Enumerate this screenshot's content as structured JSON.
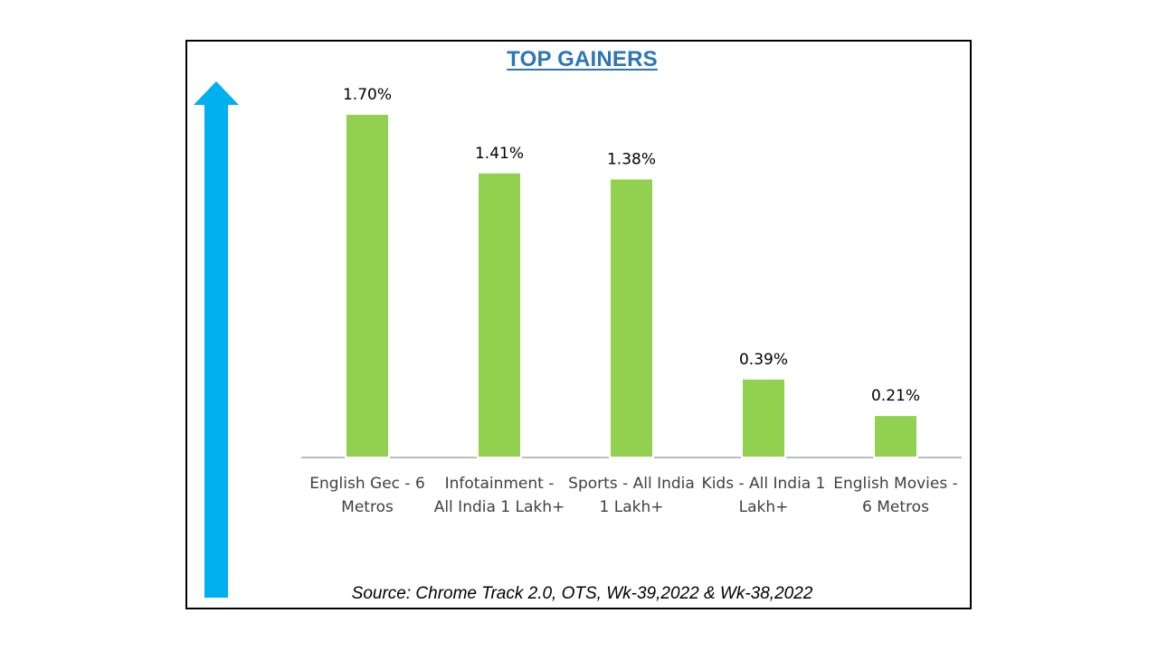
{
  "colors": {
    "bar": "#92D050",
    "arrow": "#00B0F0",
    "title": "#2E75B6",
    "axis": "#A6A6A6"
  },
  "icons": {
    "arrow": "up-arrow-icon"
  },
  "chart_data": {
    "type": "bar",
    "title": "TOP GAINERS",
    "categories": [
      [
        "English Gec - 6",
        "Metros"
      ],
      [
        "Infotainment -",
        "All India 1 Lakh+"
      ],
      [
        "Sports - All India",
        "1 Lakh+"
      ],
      [
        "Kids - All India 1",
        "Lakh+"
      ],
      [
        "English Movies -",
        "6 Metros"
      ]
    ],
    "values": [
      1.7,
      1.41,
      1.38,
      0.39,
      0.21
    ],
    "value_labels": [
      "1.70%",
      "1.41%",
      "1.38%",
      "0.39%",
      "0.21%"
    ],
    "xlabel": "",
    "ylabel": "",
    "ylim": [
      0,
      1.75
    ],
    "grid": false,
    "legend": "none"
  },
  "source": "Source: Chrome Track 2.0, OTS, Wk-39,2022 & Wk-38,2022"
}
